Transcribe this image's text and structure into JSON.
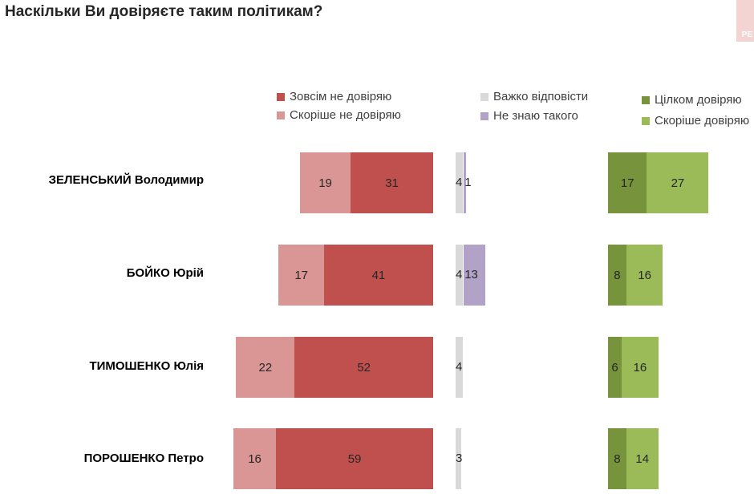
{
  "title": "Наскільки Ви довіряєте таким політикам?",
  "corner_tag": "РЕ",
  "colors": {
    "completely_distrust": "#c0504d",
    "rather_distrust": "#d99694",
    "hard_to_say": "#d9d9d9",
    "dont_know": "#b3a2c7",
    "completely_trust": "#77933c",
    "rather_trust": "#9bbb59"
  },
  "legend": {
    "completely_distrust": "Зовсім не довіряю",
    "rather_distrust": "Скоріше не довіряю",
    "hard_to_say": "Важко відповісти",
    "dont_know": "Не знаю такого",
    "completely_trust": "Цілком довіряю",
    "rather_trust": "Скоріше довіряю"
  },
  "chart_data": {
    "type": "bar",
    "orientation": "horizontal",
    "stacked": true,
    "title": "Наскільки Ви довіряєте таким політикам?",
    "categories": [
      "ЗЕЛЕНСЬКИЙ Володимир",
      "БОЙКО Юрій",
      "ТИМОШЕНКО Юлія",
      "ПОРОШЕНКО Петро"
    ],
    "series": [
      {
        "name": "Зовсім не довіряю",
        "group": "distrust",
        "values": [
          31,
          41,
          52,
          59
        ]
      },
      {
        "name": "Скоріше не довіряю",
        "group": "distrust",
        "values": [
          19,
          17,
          22,
          16
        ]
      },
      {
        "name": "Важко відповісти",
        "group": "middle",
        "values": [
          4,
          4,
          4,
          3
        ]
      },
      {
        "name": "Не знаю такого",
        "group": "middle",
        "values": [
          1,
          13,
          null,
          null
        ]
      },
      {
        "name": "Цілком довіряю",
        "group": "trust",
        "values": [
          17,
          8,
          6,
          8
        ]
      },
      {
        "name": "Скоріше довіряю",
        "group": "trust",
        "values": [
          27,
          16,
          16,
          14
        ]
      }
    ],
    "legend_position": "top",
    "grid": false
  }
}
